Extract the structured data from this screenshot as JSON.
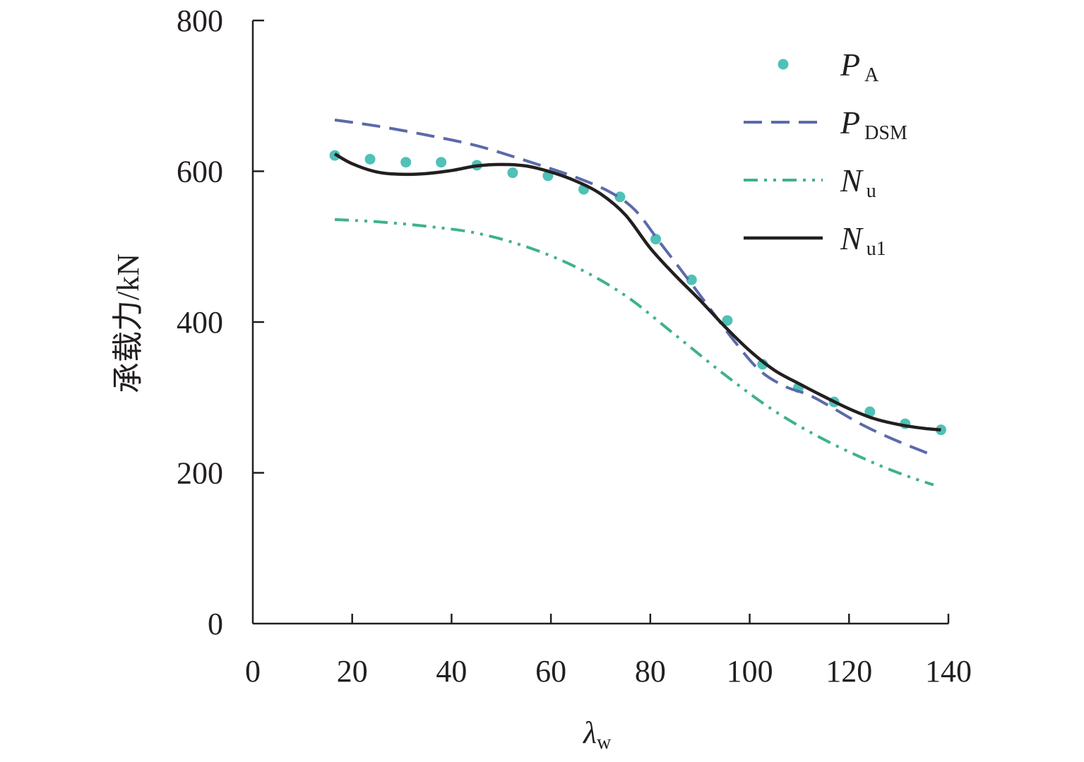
{
  "chart_data": {
    "type": "line",
    "xlabel": "λw",
    "xlabel_main": "λ",
    "xlabel_sub": "w",
    "ylabel": "承载力/kN",
    "xlim": [
      0,
      140
    ],
    "ylim": [
      0,
      800
    ],
    "xticks": [
      0,
      20,
      40,
      60,
      80,
      100,
      120,
      140
    ],
    "yticks": [
      0,
      200,
      400,
      600,
      800
    ],
    "grid": false,
    "legend_position": "top-right",
    "series": [
      {
        "name": "PA",
        "label_main": "P",
        "label_sub": "A",
        "kind": "scatter",
        "color": "#4fc1b7",
        "x": [
          16.5,
          23.6,
          30.8,
          37.9,
          45.1,
          52.3,
          59.4,
          66.6,
          73.9,
          81.1,
          88.3,
          95.5,
          102.6,
          109.8,
          117.0,
          124.2,
          131.3,
          138.5
        ],
        "y": [
          621,
          616,
          612,
          612,
          608,
          598,
          594,
          576,
          566,
          510,
          456,
          402,
          344,
          313,
          294,
          281,
          265,
          257
        ]
      },
      {
        "name": "PDSM",
        "label_main": "P",
        "label_sub": "DSM",
        "kind": "line",
        "dash": "dashed",
        "color": "#5a6aaa",
        "x": [
          16.5,
          25,
          35,
          45,
          55,
          65,
          72,
          77,
          82,
          87,
          92,
          97,
          102,
          107,
          112,
          117,
          122,
          127,
          132,
          137
        ],
        "y": [
          668,
          660,
          648,
          634,
          614,
          592,
          572,
          548,
          505,
          462,
          418,
          374,
          336,
          315,
          303,
          285,
          266,
          250,
          236,
          223
        ]
      },
      {
        "name": "Nu",
        "label_main": "N",
        "label_sub": "u",
        "kind": "line",
        "dash": "dash-dot-dot",
        "color": "#3fb18f",
        "x": [
          16.5,
          25,
          35,
          45,
          55,
          65,
          75,
          85,
          95,
          105,
          115,
          125,
          132,
          137
        ],
        "y": [
          536,
          533,
          527,
          518,
          500,
          473,
          435,
          383,
          330,
          282,
          244,
          213,
          195,
          184
        ]
      },
      {
        "name": "Nu1",
        "label_main": "N",
        "label_sub": "u1",
        "kind": "line",
        "dash": "solid",
        "color": "#231f20",
        "x": [
          16.5,
          20,
          25,
          30,
          35,
          40,
          45,
          50,
          55,
          60,
          65,
          70,
          75,
          80,
          85,
          90,
          95,
          100,
          105,
          110,
          115,
          120,
          125,
          130,
          135,
          138.5
        ],
        "y": [
          623,
          610,
          599,
          596,
          597,
          601,
          607,
          609,
          607,
          599,
          587,
          570,
          542,
          498,
          462,
          429,
          394,
          362,
          336,
          318,
          301,
          285,
          272,
          264,
          259,
          257
        ]
      }
    ]
  }
}
